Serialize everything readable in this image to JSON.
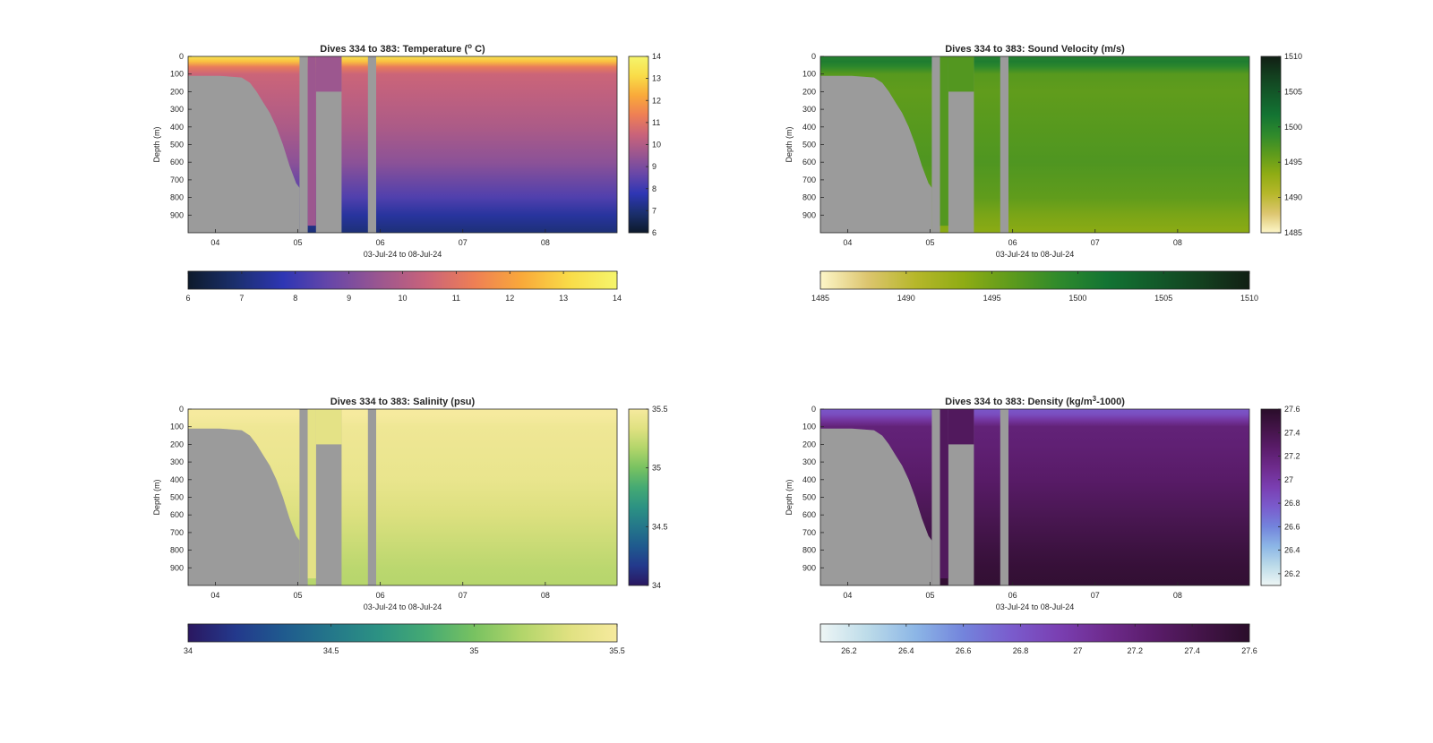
{
  "figure": {
    "panels": [
      {
        "title": "Dives 334 to 383: Temperature (°C)",
        "title_parts": {
          "pre": "Dives 334 to 383: Temperature (",
          "sup": "o",
          "post": " C)"
        },
        "variable": "temperature",
        "colormap": [
          "#0d1a2b",
          "#1b2f6e",
          "#2e36b4",
          "#6847a8",
          "#9a5690",
          "#c9637a",
          "#ee7f55",
          "#f9a93a",
          "#f9dc48",
          "#f5f56c"
        ],
        "colorbar_ticks": [
          "6",
          "7",
          "8",
          "9",
          "10",
          "11",
          "12",
          "13",
          "14"
        ],
        "colorbar_range": [
          6,
          14
        ]
      },
      {
        "title": "Dives 334 to 383: Sound Velocity (m/s)",
        "title_parts": {
          "pre": "Dives 334 to 383: Sound Velocity (m/s)",
          "sup": "",
          "post": ""
        },
        "variable": "sound_velocity",
        "colormap": [
          "#fdf6c8",
          "#dcc56e",
          "#b6b72a",
          "#8fac14",
          "#5e9b1c",
          "#2f8a2c",
          "#137433",
          "#135b2a",
          "#13401f",
          "#111f14"
        ],
        "colorbar_ticks": [
          "1485",
          "1490",
          "1495",
          "1500",
          "1505",
          "1510"
        ],
        "colorbar_range": [
          1485,
          1510
        ]
      },
      {
        "title": "Dives 334 to 383: Salinity (psu)",
        "title_parts": {
          "pre": "Dives 334 to 383: Salinity (psu)",
          "sup": "",
          "post": ""
        },
        "variable": "salinity",
        "colormap": [
          "#2a1760",
          "#23398c",
          "#1f5a8e",
          "#24778a",
          "#2c9283",
          "#45aa73",
          "#78c261",
          "#b2d56a",
          "#e0e181",
          "#f6ea9e"
        ],
        "colorbar_ticks": [
          "34",
          "34.5",
          "35",
          "35.5"
        ],
        "colorbar_range": [
          34,
          35.5
        ]
      },
      {
        "title": "Dives 334 to 383: Density (kg/m³-1000)",
        "title_parts": {
          "pre": "Dives 334 to 383: Density (kg/m",
          "sup": "3",
          "post": "-1000)"
        },
        "variable": "density",
        "colormap": [
          "#eef6f5",
          "#bcdbe9",
          "#8cb6e6",
          "#7384dc",
          "#7a5ccd",
          "#7a3fb2",
          "#6e2b8d",
          "#5a1c6a",
          "#431448",
          "#2a0d2a"
        ],
        "colorbar_ticks": [
          "26.2",
          "26.4",
          "26.6",
          "26.8",
          "27",
          "27.2",
          "27.4",
          "27.6"
        ],
        "colorbar_range": [
          26.1,
          27.6
        ]
      }
    ]
  },
  "chart_data": [
    {
      "type": "heatmap",
      "title": "Dives 334 to 383: Temperature (°C)",
      "xlabel": "03-Jul-24 to 08-Jul-24",
      "ylabel": "Depth (m)",
      "x_ticks": [
        "04",
        "05",
        "06",
        "07",
        "08"
      ],
      "x_range_days": [
        3.67,
        8.87
      ],
      "y_ticks": [
        0,
        100,
        200,
        300,
        400,
        500,
        600,
        700,
        800,
        900
      ],
      "ylim": [
        0,
        1000
      ],
      "colorbar_range": [
        6,
        14
      ],
      "colorbar_ticks": [
        6,
        7,
        8,
        9,
        10,
        11,
        12,
        13,
        14
      ],
      "profile": {
        "depth_m": [
          0,
          30,
          60,
          100,
          200,
          400,
          600,
          800,
          900,
          1000
        ],
        "value": [
          13.4,
          12.6,
          11.2,
          10.5,
          10.3,
          9.9,
          9.3,
          8.3,
          7.5,
          7.0
        ]
      }
    },
    {
      "type": "heatmap",
      "title": "Dives 334 to 383: Sound Velocity (m/s)",
      "xlabel": "03-Jul-24 to 08-Jul-24",
      "ylabel": "Depth (m)",
      "x_ticks": [
        "04",
        "05",
        "06",
        "07",
        "08"
      ],
      "x_range_days": [
        3.67,
        8.87
      ],
      "y_ticks": [
        0,
        100,
        200,
        300,
        400,
        500,
        600,
        700,
        800,
        900
      ],
      "ylim": [
        0,
        1000
      ],
      "colorbar_range": [
        1485,
        1510
      ],
      "colorbar_ticks": [
        1485,
        1490,
        1495,
        1500,
        1505,
        1510
      ],
      "profile": {
        "depth_m": [
          0,
          30,
          60,
          100,
          200,
          400,
          600,
          800,
          900,
          1000
        ],
        "value": [
          1500.0,
          1500.5,
          1499.0,
          1496.5,
          1496.0,
          1496.5,
          1497.0,
          1496.0,
          1494.5,
          1493.5
        ]
      }
    },
    {
      "type": "heatmap",
      "title": "Dives 334 to 383: Salinity (psu)",
      "xlabel": "03-Jul-24 to 08-Jul-24",
      "ylabel": "Depth (m)",
      "x_ticks": [
        "04",
        "05",
        "06",
        "07",
        "08"
      ],
      "x_range_days": [
        3.67,
        8.87
      ],
      "y_ticks": [
        0,
        100,
        200,
        300,
        400,
        500,
        600,
        700,
        800,
        900
      ],
      "ylim": [
        0,
        1000
      ],
      "colorbar_range": [
        34,
        35.5
      ],
      "colorbar_ticks": [
        34,
        34.5,
        35,
        35.5
      ],
      "profile": {
        "depth_m": [
          0,
          30,
          60,
          100,
          200,
          400,
          600,
          800,
          900,
          1000
        ],
        "value": [
          35.5,
          35.5,
          35.48,
          35.45,
          35.43,
          35.4,
          35.32,
          35.24,
          35.2,
          35.18
        ]
      }
    },
    {
      "type": "heatmap",
      "title": "Dives 334 to 383: Density (kg/m³-1000)",
      "xlabel": "03-Jul-24 to 08-Jul-24",
      "ylabel": "Depth (m)",
      "x_ticks": [
        "04",
        "05",
        "06",
        "07",
        "08"
      ],
      "x_range_days": [
        3.67,
        8.87
      ],
      "y_ticks": [
        0,
        100,
        200,
        300,
        400,
        500,
        600,
        700,
        800,
        900
      ],
      "ylim": [
        0,
        1000
      ],
      "colorbar_range": [
        26.1,
        27.6
      ],
      "colorbar_ticks": [
        26.2,
        26.4,
        26.6,
        26.8,
        27,
        27.2,
        27.4,
        27.6
      ],
      "profile": {
        "depth_m": [
          0,
          30,
          60,
          100,
          200,
          400,
          600,
          800,
          900,
          1000
        ],
        "value": [
          26.8,
          26.85,
          27.0,
          27.2,
          27.22,
          27.28,
          27.38,
          27.48,
          27.52,
          27.55
        ]
      }
    }
  ],
  "missing_data_mask": {
    "shallow_limit_profile": {
      "x_days": [
        3.67,
        4.05,
        4.2,
        4.32,
        4.42,
        4.5,
        4.58,
        4.66,
        4.74,
        4.82,
        4.9,
        4.98,
        5.02
      ],
      "depth_m": [
        110,
        110,
        115,
        120,
        150,
        200,
        260,
        320,
        400,
        500,
        620,
        720,
        745
      ]
    },
    "blank_columns_days": [
      [
        5.02,
        5.12
      ],
      [
        5.22,
        5.53
      ],
      [
        5.85,
        5.95
      ]
    ],
    "cast_blocks": [
      {
        "x_days": [
          5.12,
          5.22
        ],
        "top_m": 0,
        "bottom_m": 960
      },
      {
        "x_days": [
          5.22,
          5.53
        ],
        "top_m": 0,
        "bottom_m": 200
      }
    ]
  },
  "colors": {
    "missing": "#9b9b9b",
    "axis": "#262626"
  }
}
